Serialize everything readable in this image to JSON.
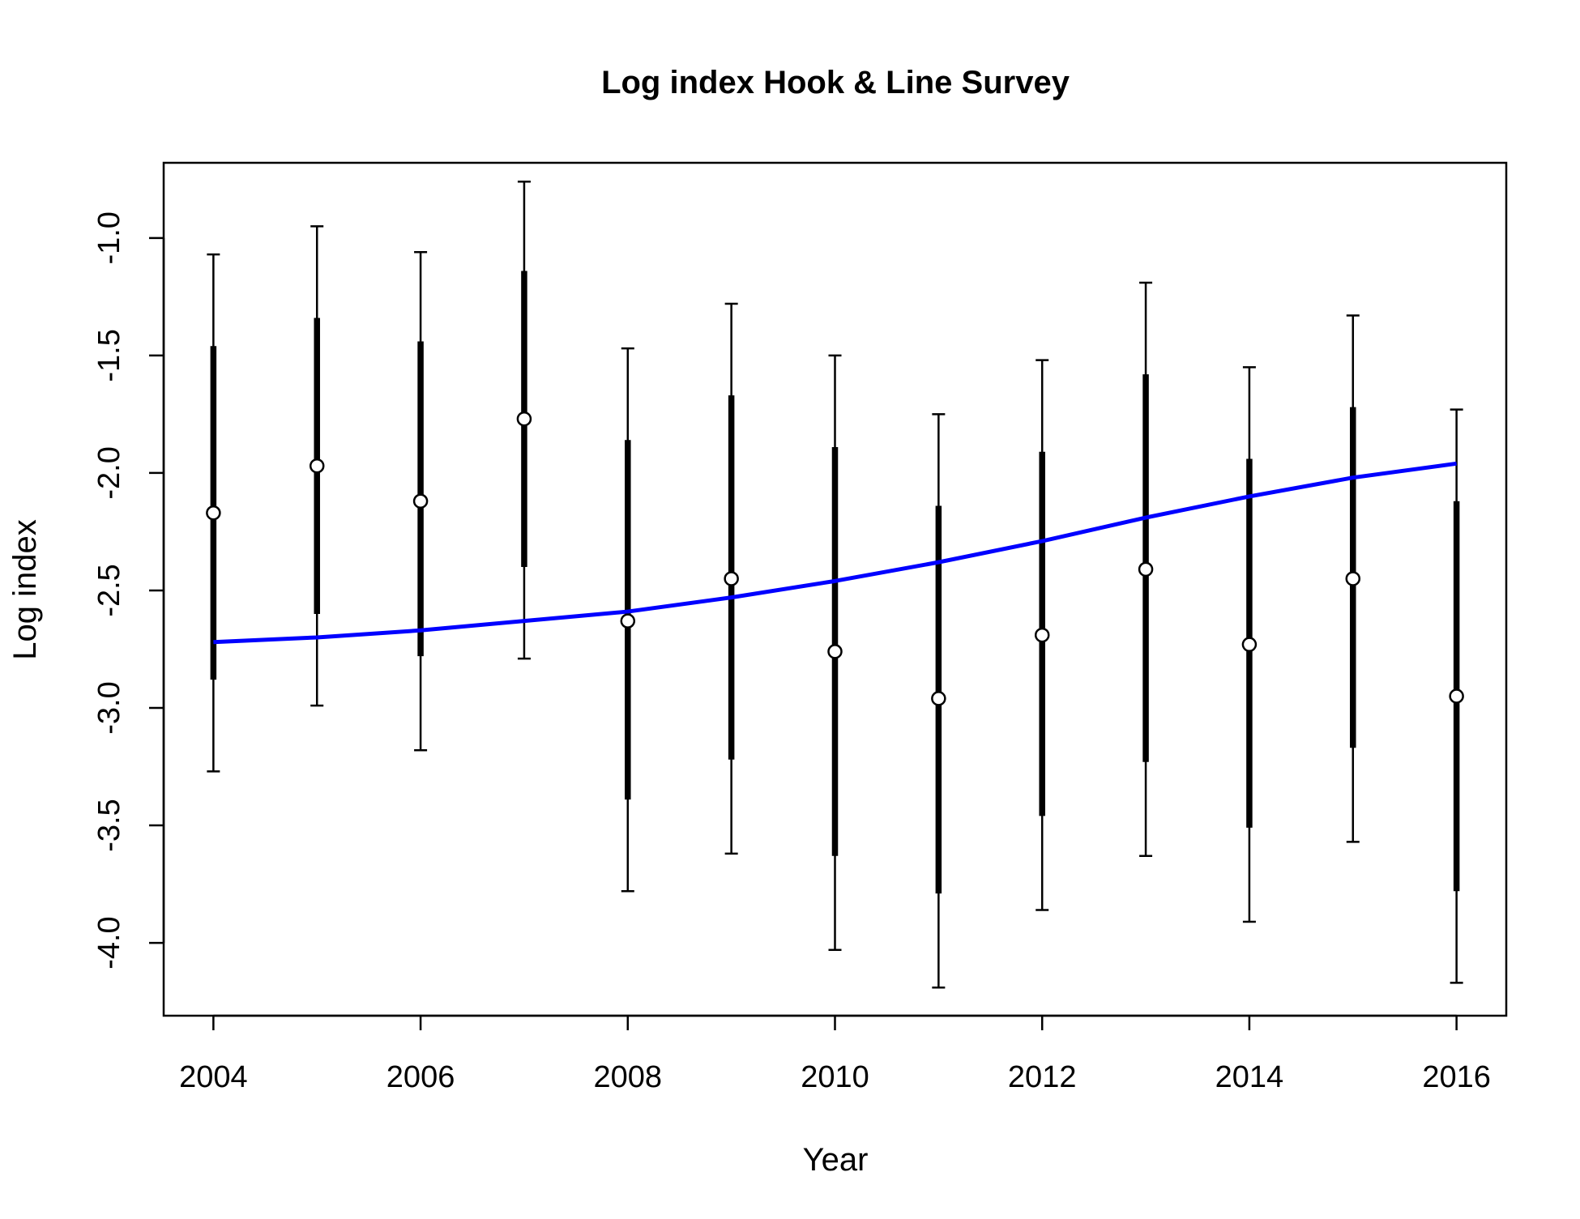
{
  "chart_data": {
    "type": "scatter",
    "title": "Log index Hook & Line Survey",
    "xlabel": "Year",
    "ylabel": "Log index",
    "xlim": [
      2003.52,
      2016.48
    ],
    "ylim": [
      -4.31,
      -0.68
    ],
    "x_ticks": [
      2004,
      2006,
      2008,
      2010,
      2012,
      2014,
      2016
    ],
    "x_tick_labels": [
      "2004",
      "2006",
      "2008",
      "2010",
      "2012",
      "2014",
      "2016"
    ],
    "y_ticks": [
      -4.0,
      -3.5,
      -3.0,
      -2.5,
      -2.0,
      -1.5,
      -1.0
    ],
    "y_tick_labels": [
      "-4.0",
      "-3.5",
      "-3.0",
      "-2.5",
      "-2.0",
      "-1.5",
      "-1.0"
    ],
    "grid": false,
    "legend": "none",
    "colors": {
      "points": "#000000",
      "point_fill": "#ffffff",
      "intervals": "#000000",
      "fit_line": "#0000ff"
    },
    "series": [
      {
        "kind": "observed",
        "x": [
          2004,
          2005,
          2006,
          2007,
          2008,
          2009,
          2010,
          2011,
          2012,
          2013,
          2014,
          2015,
          2016
        ],
        "y": [
          -2.17,
          -1.97,
          -2.12,
          -1.77,
          -2.63,
          -2.45,
          -2.76,
          -2.96,
          -2.69,
          -2.41,
          -2.73,
          -2.45,
          -2.95
        ],
        "inner_lower": [
          -2.88,
          -2.6,
          -2.78,
          -2.4,
          -3.39,
          -3.22,
          -3.63,
          -3.79,
          -3.46,
          -3.23,
          -3.51,
          -3.17,
          -3.78
        ],
        "inner_upper": [
          -1.46,
          -1.34,
          -1.44,
          -1.14,
          -1.86,
          -1.67,
          -1.89,
          -2.14,
          -1.91,
          -1.58,
          -1.94,
          -1.72,
          -2.12
        ],
        "outer_lower": [
          -3.27,
          -2.99,
          -3.18,
          -2.79,
          -3.78,
          -3.62,
          -4.03,
          -4.19,
          -3.86,
          -3.63,
          -3.91,
          -3.57,
          -4.17
        ],
        "outer_upper": [
          -1.07,
          -0.95,
          -1.06,
          -0.76,
          -1.47,
          -1.28,
          -1.5,
          -1.75,
          -1.52,
          -1.19,
          -1.55,
          -1.33,
          -1.73
        ]
      },
      {
        "kind": "fit",
        "x": [
          2004,
          2005,
          2006,
          2007,
          2008,
          2009,
          2010,
          2011,
          2012,
          2013,
          2014,
          2015,
          2016
        ],
        "y": [
          -2.72,
          -2.7,
          -2.67,
          -2.63,
          -2.59,
          -2.53,
          -2.46,
          -2.38,
          -2.29,
          -2.19,
          -2.1,
          -2.02,
          -1.96
        ]
      }
    ]
  }
}
